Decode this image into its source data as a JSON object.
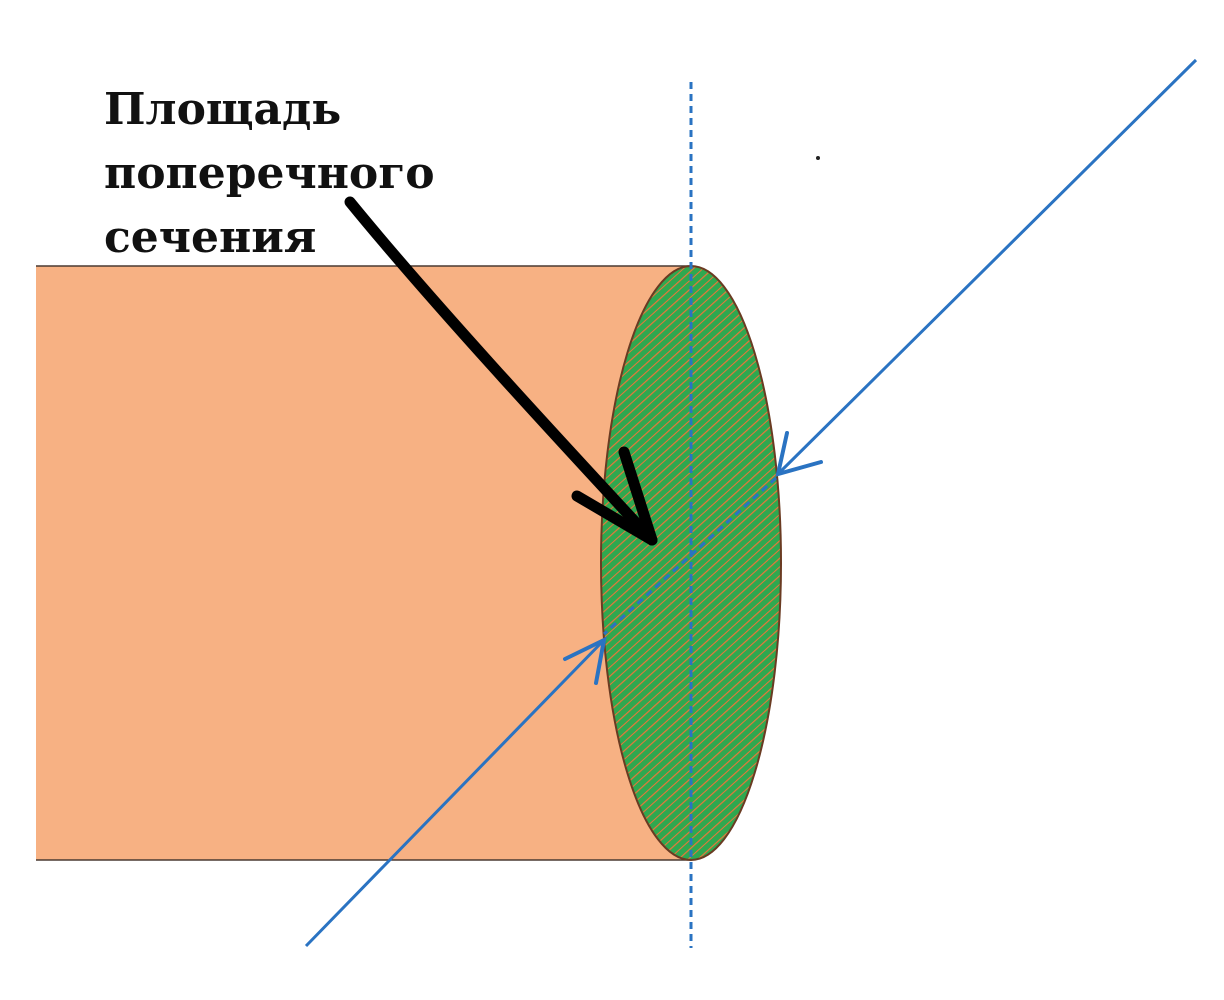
{
  "label": {
    "lines": [
      "Площадь",
      "поперечного",
      "сечения"
    ]
  },
  "colors": {
    "wire_fill": "#f7b183",
    "wire_edge": "#4a3a32",
    "section_green": "#2fa84f",
    "section_orange": "#e9773a",
    "guide_blue": "#2a73c2",
    "pointer_black": "#000000"
  },
  "icons": {
    "pointer": "thick-black-arrow",
    "inbound_arrows": "blue-open-arrowheads"
  }
}
